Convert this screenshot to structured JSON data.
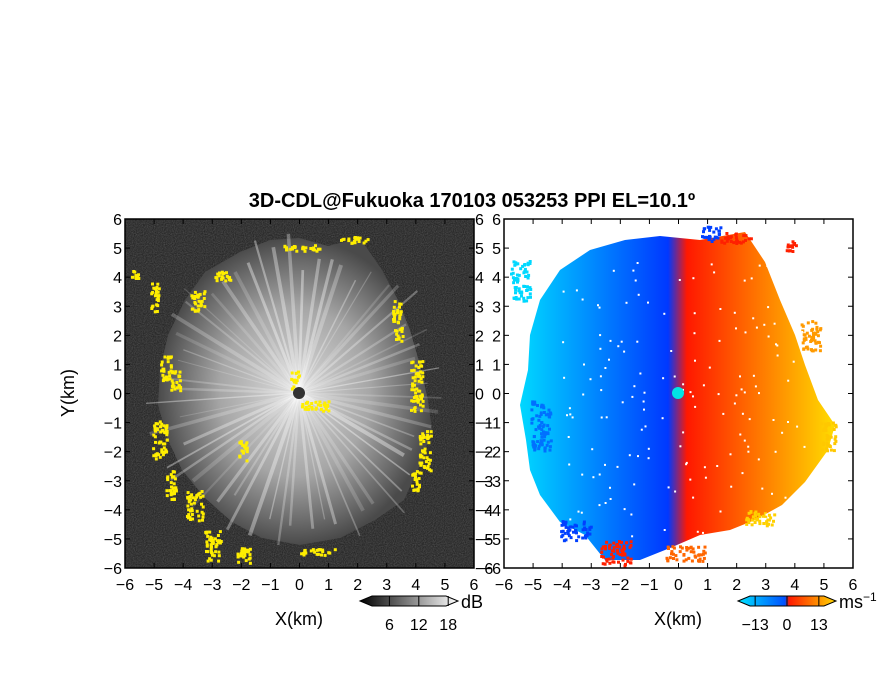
{
  "title": "3D-CDL@Fukuoka 170103 053253 PPI EL=10.1º",
  "chart_data": [
    {
      "type": "heatmap",
      "panel": "left",
      "quantity": "",
      "xlabel": "X(km)",
      "ylabel": "Y(km)",
      "xlim": [
        -6,
        6
      ],
      "ylim": [
        -6,
        6
      ],
      "xticks": [
        "−6",
        "−5",
        "−4",
        "−3",
        "−2",
        "−1",
        "0",
        "1",
        "2",
        "3",
        "4",
        "5",
        "6"
      ],
      "yticks": [
        "−6",
        "−5",
        "−4",
        "−3",
        "−2",
        "−1",
        "0",
        "1",
        "2",
        "3",
        "4",
        "5",
        "6"
      ],
      "colorbar": {
        "unit": "dB",
        "ticks": [
          "6",
          "12",
          "18"
        ],
        "tick_values": [
          6,
          12,
          18
        ],
        "range": [
          0,
          20
        ],
        "colors": [
          "#000000",
          "#ffffff"
        ]
      },
      "echo_radius_km": 4.5,
      "highlight_color": "#ffee00",
      "background_color": "#1a1a1a"
    },
    {
      "type": "heatmap",
      "panel": "right",
      "quantity": "",
      "xlabel": "X(km)",
      "ylabel": "",
      "xlim": [
        -6,
        6
      ],
      "ylim": [
        -6,
        6
      ],
      "xticks": [
        "−6",
        "−5",
        "−4",
        "−3",
        "−2",
        "−1",
        "0",
        "1",
        "2",
        "3",
        "4",
        "5",
        "6"
      ],
      "yticks": [
        "−6",
        "−5",
        "−4",
        "−3",
        "−2",
        "−1",
        "0",
        "1",
        "2",
        "3",
        "4",
        "5",
        "6"
      ],
      "colorbar": {
        "unit": "ms",
        "unit_exp": "−1",
        "ticks": [
          "−13",
          "0",
          "13"
        ],
        "tick_values": [
          -13,
          0,
          13
        ],
        "range": [
          -20,
          20
        ],
        "colors": [
          "#00e5ff",
          "#0050ff",
          "#ff1a00",
          "#ffd800"
        ]
      },
      "echo_radius_km": 5.0,
      "center_marker_color": "#00e5e5"
    }
  ]
}
